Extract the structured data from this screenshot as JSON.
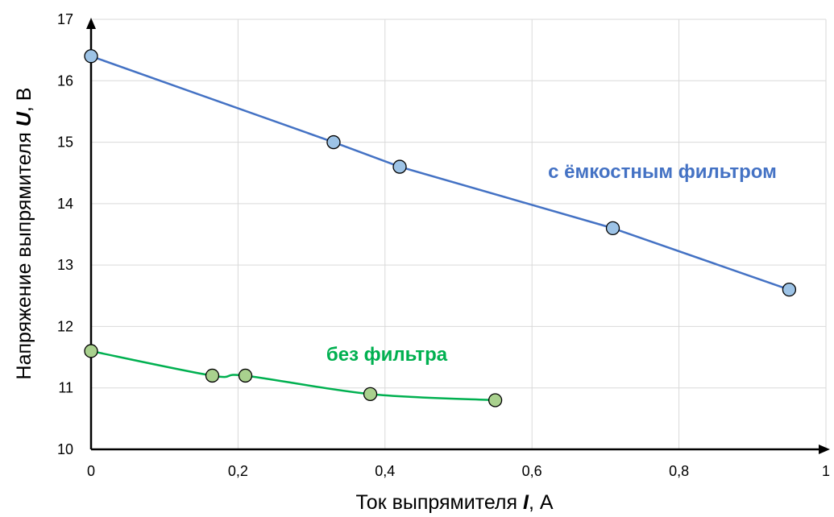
{
  "chart_data": {
    "type": "line",
    "xlabel": {
      "pre": "Ток выпрямителя ",
      "var": "I",
      "post": ", А"
    },
    "ylabel": {
      "pre": "Напряжение выпрямителя ",
      "var": "U",
      "post": ", В"
    },
    "xlim": [
      0,
      1
    ],
    "ylim": [
      10,
      17
    ],
    "x_ticks": [
      0,
      0.2,
      0.4,
      0.6,
      0.8,
      1
    ],
    "x_tick_labels": [
      "0",
      "0,2",
      "0,4",
      "0,6",
      "0,8",
      "1"
    ],
    "y_ticks": [
      10,
      11,
      12,
      13,
      14,
      15,
      16,
      17
    ],
    "y_tick_labels": [
      "10",
      "11",
      "12",
      "13",
      "14",
      "15",
      "16",
      "17"
    ],
    "grid": true,
    "series": [
      {
        "name": "с ёмкостным фильтром",
        "color": "#4472C4",
        "marker_color": "#9DC3E6",
        "x": [
          0,
          0.33,
          0.42,
          0.71,
          0.95
        ],
        "y": [
          16.4,
          15.0,
          14.6,
          13.6,
          12.6
        ]
      },
      {
        "name": "без фильтра",
        "color": "#00B050",
        "marker_color": "#A9D18E",
        "x": [
          0,
          0.165,
          0.21,
          0.38,
          0.55
        ],
        "y": [
          11.6,
          11.2,
          11.2,
          10.9,
          10.8
        ]
      }
    ]
  }
}
